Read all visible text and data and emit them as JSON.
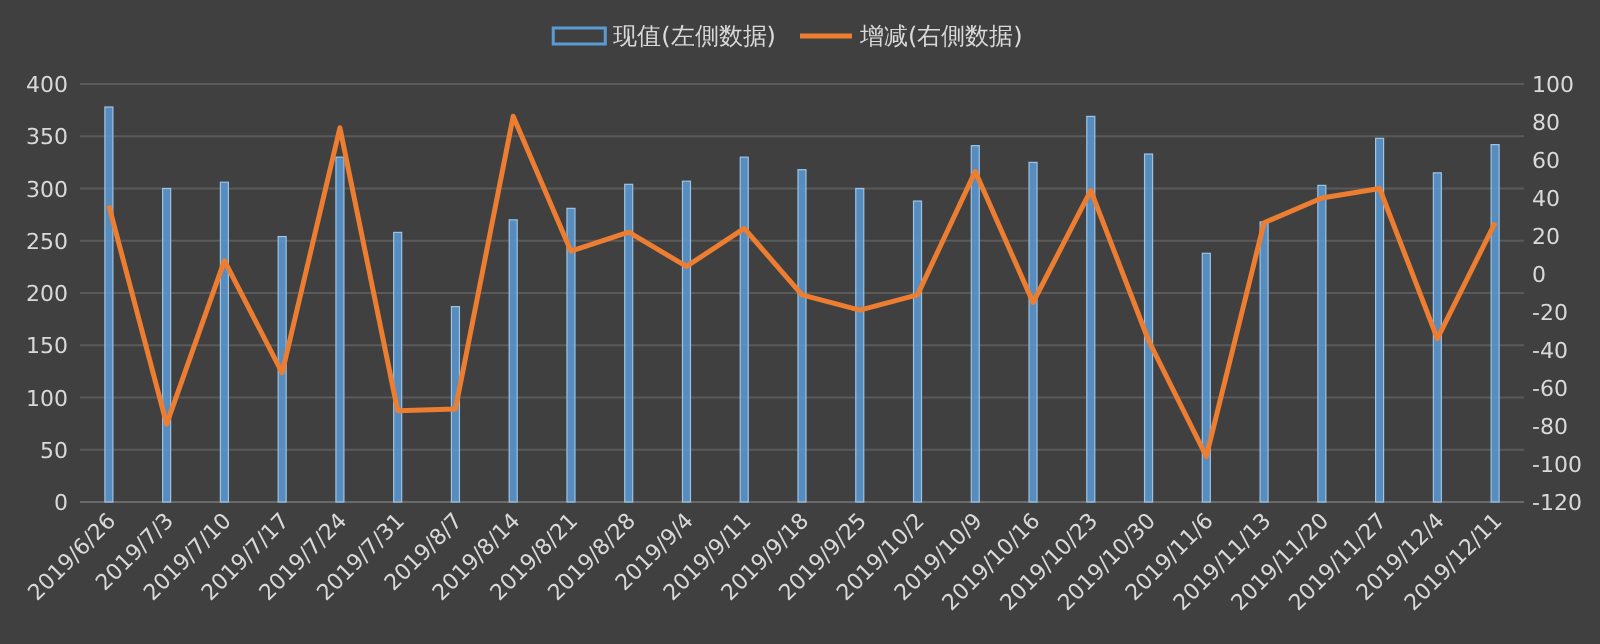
{
  "chart_data": {
    "type": "bar",
    "categories": [
      "2019/6/26",
      "2019/7/3",
      "2019/7/10",
      "2019/7/17",
      "2019/7/24",
      "2019/7/31",
      "2019/8/7",
      "2019/8/14",
      "2019/8/21",
      "2019/8/28",
      "2019/9/4",
      "2019/9/11",
      "2019/9/18",
      "2019/9/25",
      "2019/10/2",
      "2019/10/9",
      "2019/10/16",
      "2019/10/23",
      "2019/10/30",
      "2019/11/6",
      "2019/11/13",
      "2019/11/20",
      "2019/11/27",
      "2019/12/4",
      "2019/12/11"
    ],
    "series": [
      {
        "name": "现值(左側数据)",
        "color": "#5b9bd5",
        "values": [
          378,
          300,
          306,
          254,
          330,
          258,
          187,
          270,
          281,
          304,
          307,
          330,
          318,
          300,
          288,
          341,
          325,
          369,
          333,
          238,
          268,
          303,
          348,
          315,
          342
        ]
      },
      {
        "name": "增减(右側数据)",
        "type": "line",
        "axis": "y2",
        "color": "#ed7d31",
        "values": [
          36,
          -79,
          7,
          -52,
          77,
          -72,
          -71,
          83,
          12,
          22,
          4,
          24,
          -11,
          -19,
          -11,
          54,
          -15,
          44,
          -35,
          -96,
          27,
          40,
          45,
          -34,
          27
        ]
      }
    ],
    "ylim": [
      0,
      400
    ],
    "yticks": [
      0,
      50,
      100,
      150,
      200,
      250,
      300,
      350,
      400
    ],
    "y2lim": [
      -120,
      100
    ],
    "y2ticks": [
      -120,
      -100,
      -80,
      -60,
      -40,
      -20,
      0,
      20,
      40,
      60,
      80,
      100
    ],
    "grid": "y",
    "legend": "top",
    "marker": "none",
    "line_style": "solid"
  }
}
